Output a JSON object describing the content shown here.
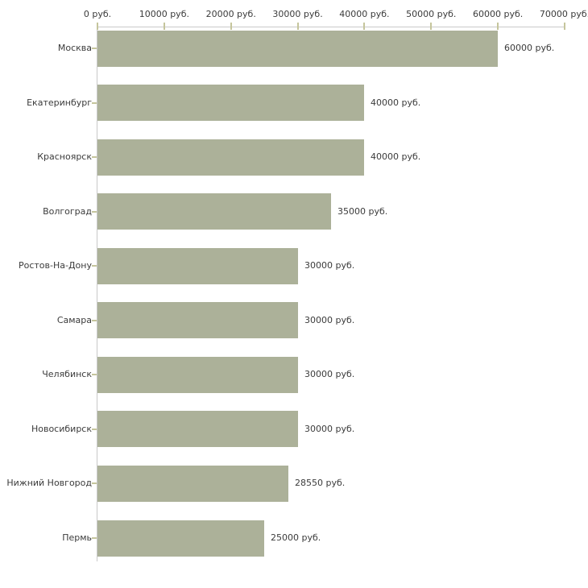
{
  "chart_data": {
    "type": "bar",
    "orientation": "horizontal",
    "title": "",
    "xlabel": "",
    "ylabel": "",
    "unit": "руб.",
    "xlim": [
      0,
      70000
    ],
    "x_tick_interval": 10000,
    "x_ticks": [
      0,
      10000,
      20000,
      30000,
      40000,
      50000,
      60000,
      70000
    ],
    "x_tick_labels": [
      "0 руб.",
      "10000 руб.",
      "20000 руб.",
      "30000 руб.",
      "40000 руб.",
      "50000 руб.",
      "60000 руб.",
      "70000 руб."
    ],
    "categories": [
      "Москва",
      "Екатеринбург",
      "Красноярск",
      "Волгоград",
      "Ростов-На-Дону",
      "Самара",
      "Челябинск",
      "Новосибирск",
      "Нижний Новгород",
      "Пермь"
    ],
    "values": [
      60000,
      40000,
      40000,
      35000,
      30000,
      30000,
      30000,
      30000,
      28550,
      25000
    ],
    "bar_value_labels": [
      "60000 руб.",
      "40000 руб.",
      "40000 руб.",
      "35000 руб.",
      "30000 руб.",
      "30000 руб.",
      "30000 руб.",
      "30000 руб.",
      "28550 руб.",
      "25000 руб."
    ],
    "grid": false,
    "legend": null,
    "colors": {
      "bar": "#acb199",
      "axis_line": "#c9c9c9",
      "tick_mark": "#c5c59c",
      "text": "#3b3b3b",
      "background": "#ffffff"
    }
  }
}
